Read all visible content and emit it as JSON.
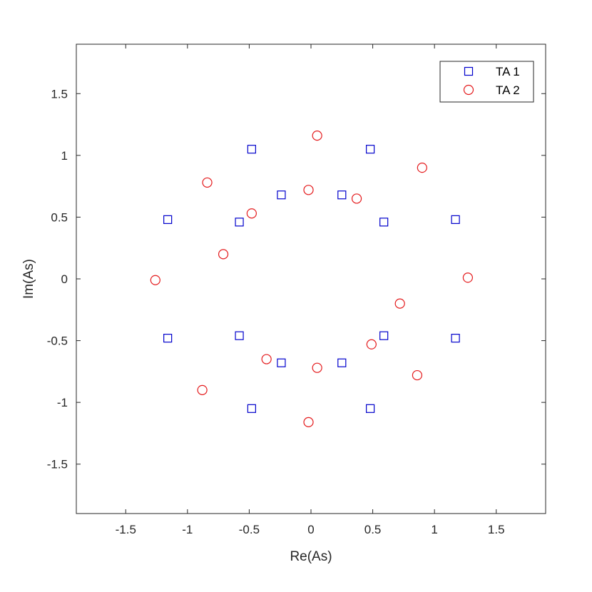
{
  "chart_data": {
    "type": "scatter",
    "title": "",
    "xlabel": "Re(As)",
    "ylabel": "Im(As)",
    "xlim": [
      -1.9,
      1.9
    ],
    "ylim": [
      -1.9,
      1.9
    ],
    "xticks": [
      -1.5,
      -1,
      -0.5,
      0,
      0.5,
      1,
      1.5
    ],
    "xtick_labels": [
      "-1.5",
      "-1",
      "-0.5",
      "0",
      "0.5",
      "1",
      "1.5"
    ],
    "yticks": [
      -1.5,
      -1,
      -0.5,
      0,
      0.5,
      1,
      1.5
    ],
    "ytick_labels": [
      "-1.5",
      "-1",
      "-0.5",
      "0",
      "0.5",
      "1",
      "1.5"
    ],
    "grid": false,
    "legend_position": "top-right",
    "series": [
      {
        "name": "TA 1",
        "marker": "square",
        "color": "#0000cc",
        "points": [
          [
            -0.48,
            1.05
          ],
          [
            0.48,
            1.05
          ],
          [
            -0.24,
            0.68
          ],
          [
            0.25,
            0.68
          ],
          [
            -1.16,
            0.48
          ],
          [
            1.17,
            0.48
          ],
          [
            -0.58,
            0.46
          ],
          [
            0.59,
            0.46
          ],
          [
            -1.16,
            -0.48
          ],
          [
            1.17,
            -0.48
          ],
          [
            -0.58,
            -0.46
          ],
          [
            0.59,
            -0.46
          ],
          [
            -0.24,
            -0.68
          ],
          [
            0.25,
            -0.68
          ],
          [
            -0.48,
            -1.05
          ],
          [
            0.48,
            -1.05
          ]
        ]
      },
      {
        "name": "TA 2",
        "marker": "circle",
        "color": "#e41a1c",
        "points": [
          [
            0.05,
            1.16
          ],
          [
            0.9,
            0.9
          ],
          [
            -0.84,
            0.78
          ],
          [
            -0.02,
            0.72
          ],
          [
            0.37,
            0.65
          ],
          [
            -0.48,
            0.53
          ],
          [
            -0.71,
            0.2
          ],
          [
            -1.26,
            -0.01
          ],
          [
            1.27,
            0.01
          ],
          [
            0.72,
            -0.2
          ],
          [
            0.49,
            -0.53
          ],
          [
            -0.36,
            -0.65
          ],
          [
            0.05,
            -0.72
          ],
          [
            0.86,
            -0.78
          ],
          [
            -0.88,
            -0.9
          ],
          [
            -0.02,
            -1.16
          ]
        ]
      }
    ]
  }
}
